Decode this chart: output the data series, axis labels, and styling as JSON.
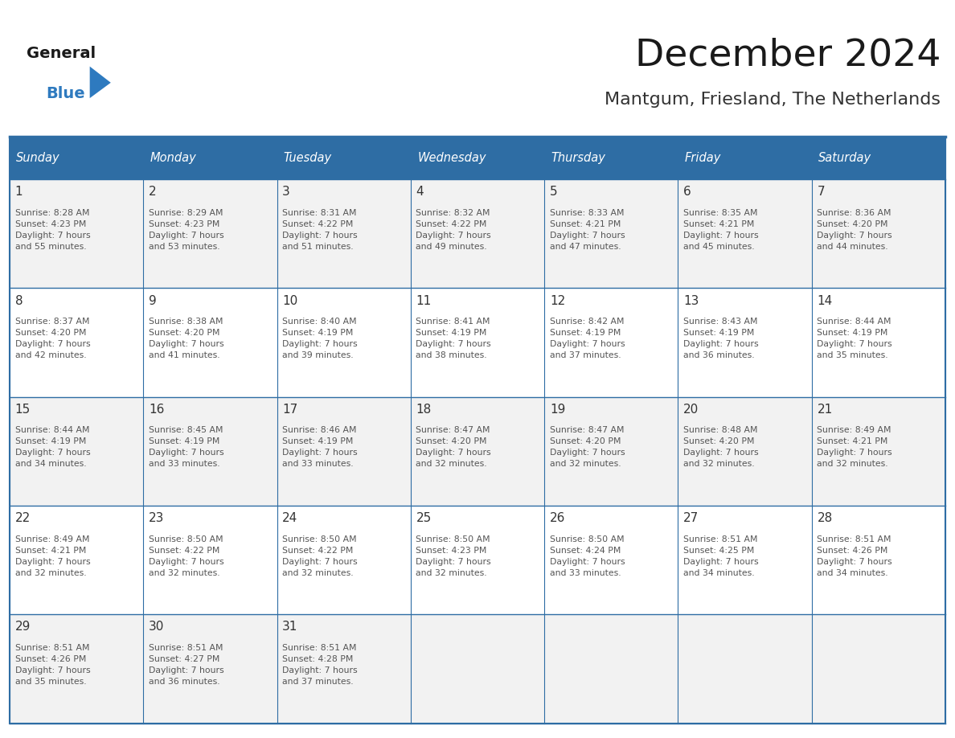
{
  "title": "December 2024",
  "subtitle": "Mantgum, Friesland, The Netherlands",
  "header_bg": "#2E6DA4",
  "header_text_color": "#FFFFFF",
  "cell_bg_light": "#F2F2F2",
  "cell_bg_white": "#FFFFFF",
  "day_headers": [
    "Sunday",
    "Monday",
    "Tuesday",
    "Wednesday",
    "Thursday",
    "Friday",
    "Saturday"
  ],
  "border_color": "#2E6DA4",
  "day_number_color": "#333333",
  "text_color": "#555555",
  "logo_general_color": "#1A1A1A",
  "logo_blue_color": "#2E7ABF",
  "weeks": [
    [
      {
        "day": 1,
        "sunrise": "8:28 AM",
        "sunset": "4:23 PM",
        "daylight": "7 hours and 55 minutes."
      },
      {
        "day": 2,
        "sunrise": "8:29 AM",
        "sunset": "4:23 PM",
        "daylight": "7 hours and 53 minutes."
      },
      {
        "day": 3,
        "sunrise": "8:31 AM",
        "sunset": "4:22 PM",
        "daylight": "7 hours and 51 minutes."
      },
      {
        "day": 4,
        "sunrise": "8:32 AM",
        "sunset": "4:22 PM",
        "daylight": "7 hours and 49 minutes."
      },
      {
        "day": 5,
        "sunrise": "8:33 AM",
        "sunset": "4:21 PM",
        "daylight": "7 hours and 47 minutes."
      },
      {
        "day": 6,
        "sunrise": "8:35 AM",
        "sunset": "4:21 PM",
        "daylight": "7 hours and 45 minutes."
      },
      {
        "day": 7,
        "sunrise": "8:36 AM",
        "sunset": "4:20 PM",
        "daylight": "7 hours and 44 minutes."
      }
    ],
    [
      {
        "day": 8,
        "sunrise": "8:37 AM",
        "sunset": "4:20 PM",
        "daylight": "7 hours and 42 minutes."
      },
      {
        "day": 9,
        "sunrise": "8:38 AM",
        "sunset": "4:20 PM",
        "daylight": "7 hours and 41 minutes."
      },
      {
        "day": 10,
        "sunrise": "8:40 AM",
        "sunset": "4:19 PM",
        "daylight": "7 hours and 39 minutes."
      },
      {
        "day": 11,
        "sunrise": "8:41 AM",
        "sunset": "4:19 PM",
        "daylight": "7 hours and 38 minutes."
      },
      {
        "day": 12,
        "sunrise": "8:42 AM",
        "sunset": "4:19 PM",
        "daylight": "7 hours and 37 minutes."
      },
      {
        "day": 13,
        "sunrise": "8:43 AM",
        "sunset": "4:19 PM",
        "daylight": "7 hours and 36 minutes."
      },
      {
        "day": 14,
        "sunrise": "8:44 AM",
        "sunset": "4:19 PM",
        "daylight": "7 hours and 35 minutes."
      }
    ],
    [
      {
        "day": 15,
        "sunrise": "8:44 AM",
        "sunset": "4:19 PM",
        "daylight": "7 hours and 34 minutes."
      },
      {
        "day": 16,
        "sunrise": "8:45 AM",
        "sunset": "4:19 PM",
        "daylight": "7 hours and 33 minutes."
      },
      {
        "day": 17,
        "sunrise": "8:46 AM",
        "sunset": "4:19 PM",
        "daylight": "7 hours and 33 minutes."
      },
      {
        "day": 18,
        "sunrise": "8:47 AM",
        "sunset": "4:20 PM",
        "daylight": "7 hours and 32 minutes."
      },
      {
        "day": 19,
        "sunrise": "8:47 AM",
        "sunset": "4:20 PM",
        "daylight": "7 hours and 32 minutes."
      },
      {
        "day": 20,
        "sunrise": "8:48 AM",
        "sunset": "4:20 PM",
        "daylight": "7 hours and 32 minutes."
      },
      {
        "day": 21,
        "sunrise": "8:49 AM",
        "sunset": "4:21 PM",
        "daylight": "7 hours and 32 minutes."
      }
    ],
    [
      {
        "day": 22,
        "sunrise": "8:49 AM",
        "sunset": "4:21 PM",
        "daylight": "7 hours and 32 minutes."
      },
      {
        "day": 23,
        "sunrise": "8:50 AM",
        "sunset": "4:22 PM",
        "daylight": "7 hours and 32 minutes."
      },
      {
        "day": 24,
        "sunrise": "8:50 AM",
        "sunset": "4:22 PM",
        "daylight": "7 hours and 32 minutes."
      },
      {
        "day": 25,
        "sunrise": "8:50 AM",
        "sunset": "4:23 PM",
        "daylight": "7 hours and 32 minutes."
      },
      {
        "day": 26,
        "sunrise": "8:50 AM",
        "sunset": "4:24 PM",
        "daylight": "7 hours and 33 minutes."
      },
      {
        "day": 27,
        "sunrise": "8:51 AM",
        "sunset": "4:25 PM",
        "daylight": "7 hours and 34 minutes."
      },
      {
        "day": 28,
        "sunrise": "8:51 AM",
        "sunset": "4:26 PM",
        "daylight": "7 hours and 34 minutes."
      }
    ],
    [
      {
        "day": 29,
        "sunrise": "8:51 AM",
        "sunset": "4:26 PM",
        "daylight": "7 hours and 35 minutes."
      },
      {
        "day": 30,
        "sunrise": "8:51 AM",
        "sunset": "4:27 PM",
        "daylight": "7 hours and 36 minutes."
      },
      {
        "day": 31,
        "sunrise": "8:51 AM",
        "sunset": "4:28 PM",
        "daylight": "7 hours and 37 minutes."
      },
      null,
      null,
      null,
      null
    ]
  ]
}
